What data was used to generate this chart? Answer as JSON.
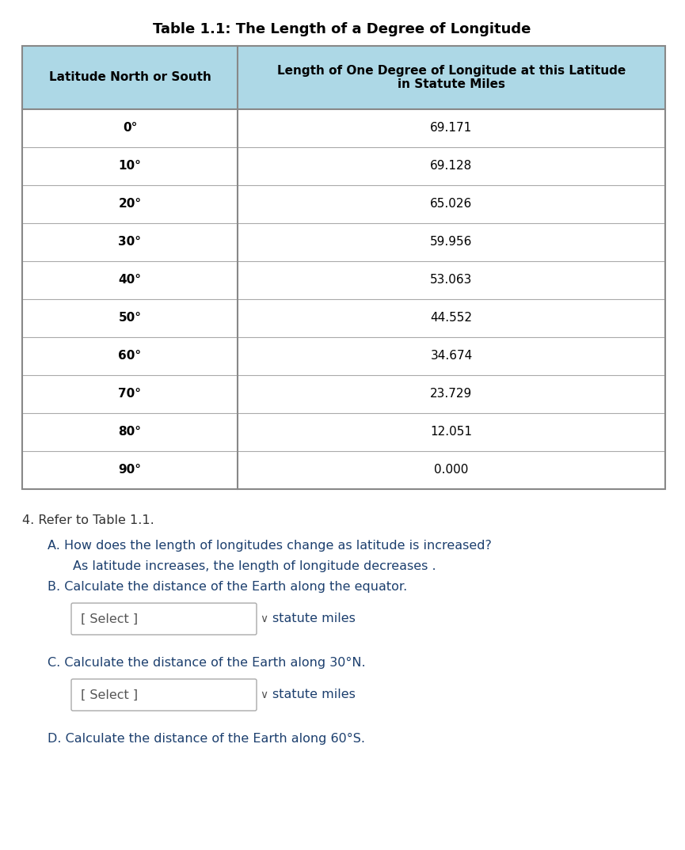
{
  "title": "Table 1.1: The Length of a Degree of Longitude",
  "col1_header": "Latitude North or South",
  "col2_header": "Length of One Degree of Longitude at this Latitude\nin Statute Miles",
  "rows": [
    [
      "0°",
      "69.171"
    ],
    [
      "10°",
      "69.128"
    ],
    [
      "20°",
      "65.026"
    ],
    [
      "30°",
      "59.956"
    ],
    [
      "40°",
      "53.063"
    ],
    [
      "50°",
      "44.552"
    ],
    [
      "60°",
      "34.674"
    ],
    [
      "70°",
      "23.729"
    ],
    [
      "80°",
      "12.051"
    ],
    [
      "90°",
      "0.000"
    ]
  ],
  "header_bg": "#add8e6",
  "header_text_color": "#000000",
  "cell_bg": "#ffffff",
  "cell_text_color": "#000000",
  "border_color": "#aaaaaa",
  "outer_border_color": "#888888",
  "title_fontsize": 13,
  "header_fontsize": 11,
  "cell_fontsize": 11,
  "body_text_color": "#1c3f6e",
  "question_4": "4. Refer to Table 1.1.",
  "question_A_line1": "A. How does the length of longitudes change as latitude is increased?",
  "question_A_line2": "As latitude increases, the length of longitude decreases .",
  "question_B": "B. Calculate the distance of the Earth along the equator.",
  "question_C": "C. Calculate the distance of the Earth along 30°N.",
  "question_D": "D. Calculate the distance of the Earth along 60°S.",
  "select_text": "[ Select ]",
  "chevron": "∨",
  "statute_miles": "statute miles",
  "bg_color": "#ffffff"
}
